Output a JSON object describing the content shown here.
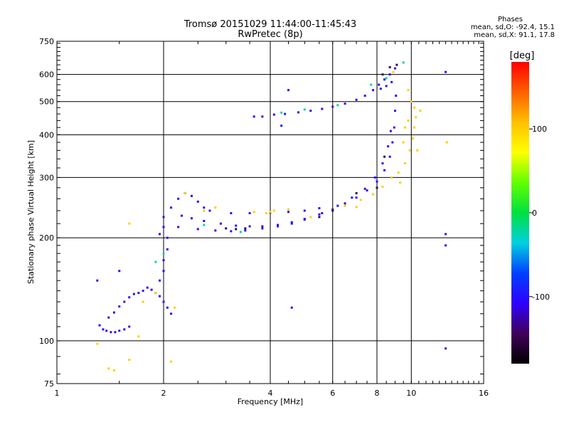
{
  "chart_data": {
    "type": "scatter",
    "title": "Tromsø 20151029 11:44:00-11:45:43",
    "subtitle": "RwPretec (8p)",
    "xlabel": "Frequency [MHz]",
    "ylabel": "Stationary phase Virtual Height [km]",
    "x_scale": "log",
    "y_scale": "log",
    "xlim": [
      1,
      16
    ],
    "ylim": [
      75,
      750
    ],
    "x_ticks": [
      1,
      2,
      4,
      6,
      8,
      10,
      16
    ],
    "y_ticks": [
      75,
      100,
      200,
      300,
      400,
      500,
      600,
      750
    ],
    "phases_header": "Phases",
    "phase_stats": [
      "mean, sd,O: -92.4, 15.1",
      "mean, sd,X:  91.1, 17.8"
    ],
    "colorbar": {
      "label": "[deg]",
      "range": [
        -180,
        180
      ],
      "ticks": [
        100,
        0,
        -100
      ],
      "colors": [
        "#000000",
        "#40005a",
        "#3000ff",
        "#0040ff",
        "#00d0e0",
        "#00e040",
        "#60ff00",
        "#ffff00",
        "#ffc000",
        "#ff6000",
        "#ff0000"
      ]
    },
    "grid": true,
    "series": [
      {
        "color_phase": -100,
        "points": [
          [
            1.32,
            111
          ],
          [
            1.35,
            108
          ],
          [
            1.38,
            107
          ],
          [
            1.42,
            106
          ],
          [
            1.46,
            106
          ],
          [
            1.5,
            107
          ],
          [
            1.55,
            108
          ],
          [
            1.6,
            110
          ],
          [
            1.4,
            117
          ],
          [
            1.45,
            121
          ],
          [
            1.5,
            126
          ],
          [
            1.55,
            130
          ],
          [
            1.6,
            134
          ],
          [
            1.65,
            137
          ],
          [
            1.7,
            138
          ],
          [
            1.75,
            140
          ],
          [
            1.8,
            143
          ],
          [
            1.85,
            141
          ],
          [
            1.9,
            138
          ],
          [
            1.95,
            135
          ],
          [
            2.0,
            130
          ],
          [
            2.05,
            125
          ],
          [
            1.95,
            150
          ],
          [
            2.0,
            160
          ],
          [
            2.0,
            172
          ],
          [
            2.05,
            185
          ],
          [
            2.05,
            200
          ],
          [
            2.0,
            215
          ],
          [
            2.0,
            230
          ],
          [
            1.95,
            205
          ],
          [
            2.1,
            245
          ],
          [
            2.2,
            260
          ],
          [
            2.3,
            270
          ],
          [
            2.4,
            265
          ],
          [
            2.5,
            255
          ],
          [
            2.6,
            245
          ],
          [
            2.7,
            240
          ],
          [
            2.25,
            232
          ],
          [
            2.4,
            228
          ],
          [
            2.6,
            224
          ],
          [
            2.9,
            220
          ],
          [
            3.2,
            217
          ],
          [
            3.5,
            216
          ],
          [
            3.8,
            216
          ],
          [
            4.2,
            218
          ],
          [
            4.6,
            222
          ],
          [
            5.0,
            227
          ],
          [
            5.5,
            234
          ],
          [
            6.0,
            242
          ],
          [
            6.5,
            252
          ],
          [
            7.0,
            262
          ],
          [
            7.5,
            275
          ],
          [
            8.0,
            292
          ],
          [
            8.4,
            315
          ],
          [
            8.7,
            345
          ],
          [
            8.85,
            380
          ],
          [
            8.95,
            420
          ],
          [
            9.0,
            470
          ],
          [
            9.05,
            520
          ],
          [
            2.2,
            215
          ],
          [
            2.5,
            212
          ],
          [
            2.8,
            210
          ],
          [
            3.1,
            209
          ],
          [
            3.4,
            210
          ],
          [
            3.8,
            213
          ],
          [
            4.2,
            216
          ],
          [
            4.6,
            220
          ],
          [
            5.0,
            226
          ],
          [
            5.6,
            236
          ],
          [
            6.2,
            248
          ],
          [
            6.8,
            262
          ],
          [
            7.4,
            278
          ],
          [
            7.9,
            300
          ],
          [
            8.3,
            330
          ],
          [
            8.6,
            370
          ],
          [
            8.75,
            410
          ],
          [
            3.1,
            236
          ],
          [
            3.5,
            236
          ],
          [
            4.0,
            237
          ],
          [
            4.5,
            238
          ],
          [
            5.0,
            240
          ],
          [
            5.5,
            244
          ],
          [
            3.6,
            452
          ],
          [
            3.8,
            452
          ],
          [
            4.1,
            458
          ],
          [
            4.4,
            460
          ],
          [
            4.8,
            465
          ],
          [
            5.2,
            470
          ],
          [
            5.6,
            476
          ],
          [
            6.0,
            483
          ],
          [
            6.5,
            493
          ],
          [
            7.0,
            506
          ],
          [
            7.4,
            520
          ],
          [
            7.8,
            540
          ],
          [
            8.1,
            560
          ],
          [
            8.4,
            580
          ],
          [
            8.7,
            600
          ],
          [
            9.0,
            625
          ],
          [
            8.2,
            545
          ],
          [
            8.5,
            555
          ],
          [
            8.8,
            570
          ],
          [
            4.5,
            540
          ],
          [
            4.3,
            425
          ],
          [
            12.5,
            610
          ],
          [
            12.5,
            205
          ],
          [
            12.5,
            190
          ],
          [
            12.5,
            95
          ],
          [
            4.6,
            125
          ],
          [
            2.1,
            120
          ],
          [
            1.3,
            150
          ],
          [
            1.5,
            160
          ]
        ]
      },
      {
        "color_phase": 100,
        "points": [
          [
            1.4,
            83
          ],
          [
            1.45,
            82
          ],
          [
            1.6,
            88
          ],
          [
            1.7,
            103
          ],
          [
            2.1,
            87
          ],
          [
            1.75,
            130
          ],
          [
            1.9,
            138
          ],
          [
            2.15,
            125
          ],
          [
            2.6,
            240
          ],
          [
            2.8,
            245
          ],
          [
            3.6,
            238
          ],
          [
            3.9,
            236
          ],
          [
            4.1,
            240
          ],
          [
            4.5,
            242
          ],
          [
            5.2,
            230
          ],
          [
            6.5,
            248
          ],
          [
            7.2,
            258
          ],
          [
            7.8,
            268
          ],
          [
            8.3,
            282
          ],
          [
            8.8,
            300
          ],
          [
            9.2,
            310
          ],
          [
            9.6,
            330
          ],
          [
            9.9,
            360
          ],
          [
            10.1,
            390
          ],
          [
            10.2,
            420
          ],
          [
            10.3,
            450
          ],
          [
            10.2,
            480
          ],
          [
            10.0,
            500
          ],
          [
            9.8,
            540
          ],
          [
            9.6,
            420
          ],
          [
            9.5,
            380
          ],
          [
            9.8,
            440
          ],
          [
            10.4,
            360
          ],
          [
            10.6,
            470
          ],
          [
            8.9,
            610
          ],
          [
            12.6,
            380
          ],
          [
            1.6,
            220
          ],
          [
            2.3,
            270
          ],
          [
            4.0,
            238
          ],
          [
            1.3,
            98
          ],
          [
            7.0,
            246
          ],
          [
            9.3,
            290
          ]
        ]
      },
      {
        "color_phase": -150,
        "points": [
          [
            3.0,
            213
          ],
          [
            3.2,
            212
          ],
          [
            3.4,
            213
          ],
          [
            6.0,
            240
          ],
          [
            7.0,
            270
          ],
          [
            8.3,
            600
          ],
          [
            8.7,
            630
          ],
          [
            9.1,
            640
          ],
          [
            8.0,
            280
          ],
          [
            8.4,
            345
          ],
          [
            5.5,
            230
          ]
        ]
      },
      {
        "color_phase": -20,
        "points": [
          [
            2.6,
            218
          ],
          [
            3.3,
            208
          ],
          [
            4.3,
            464
          ],
          [
            5.0,
            474
          ],
          [
            7.7,
            560
          ],
          [
            8.5,
            585
          ],
          [
            6.2,
            488
          ],
          [
            9.5,
            650
          ],
          [
            2.0,
            180
          ],
          [
            1.9,
            170
          ]
        ]
      }
    ]
  }
}
